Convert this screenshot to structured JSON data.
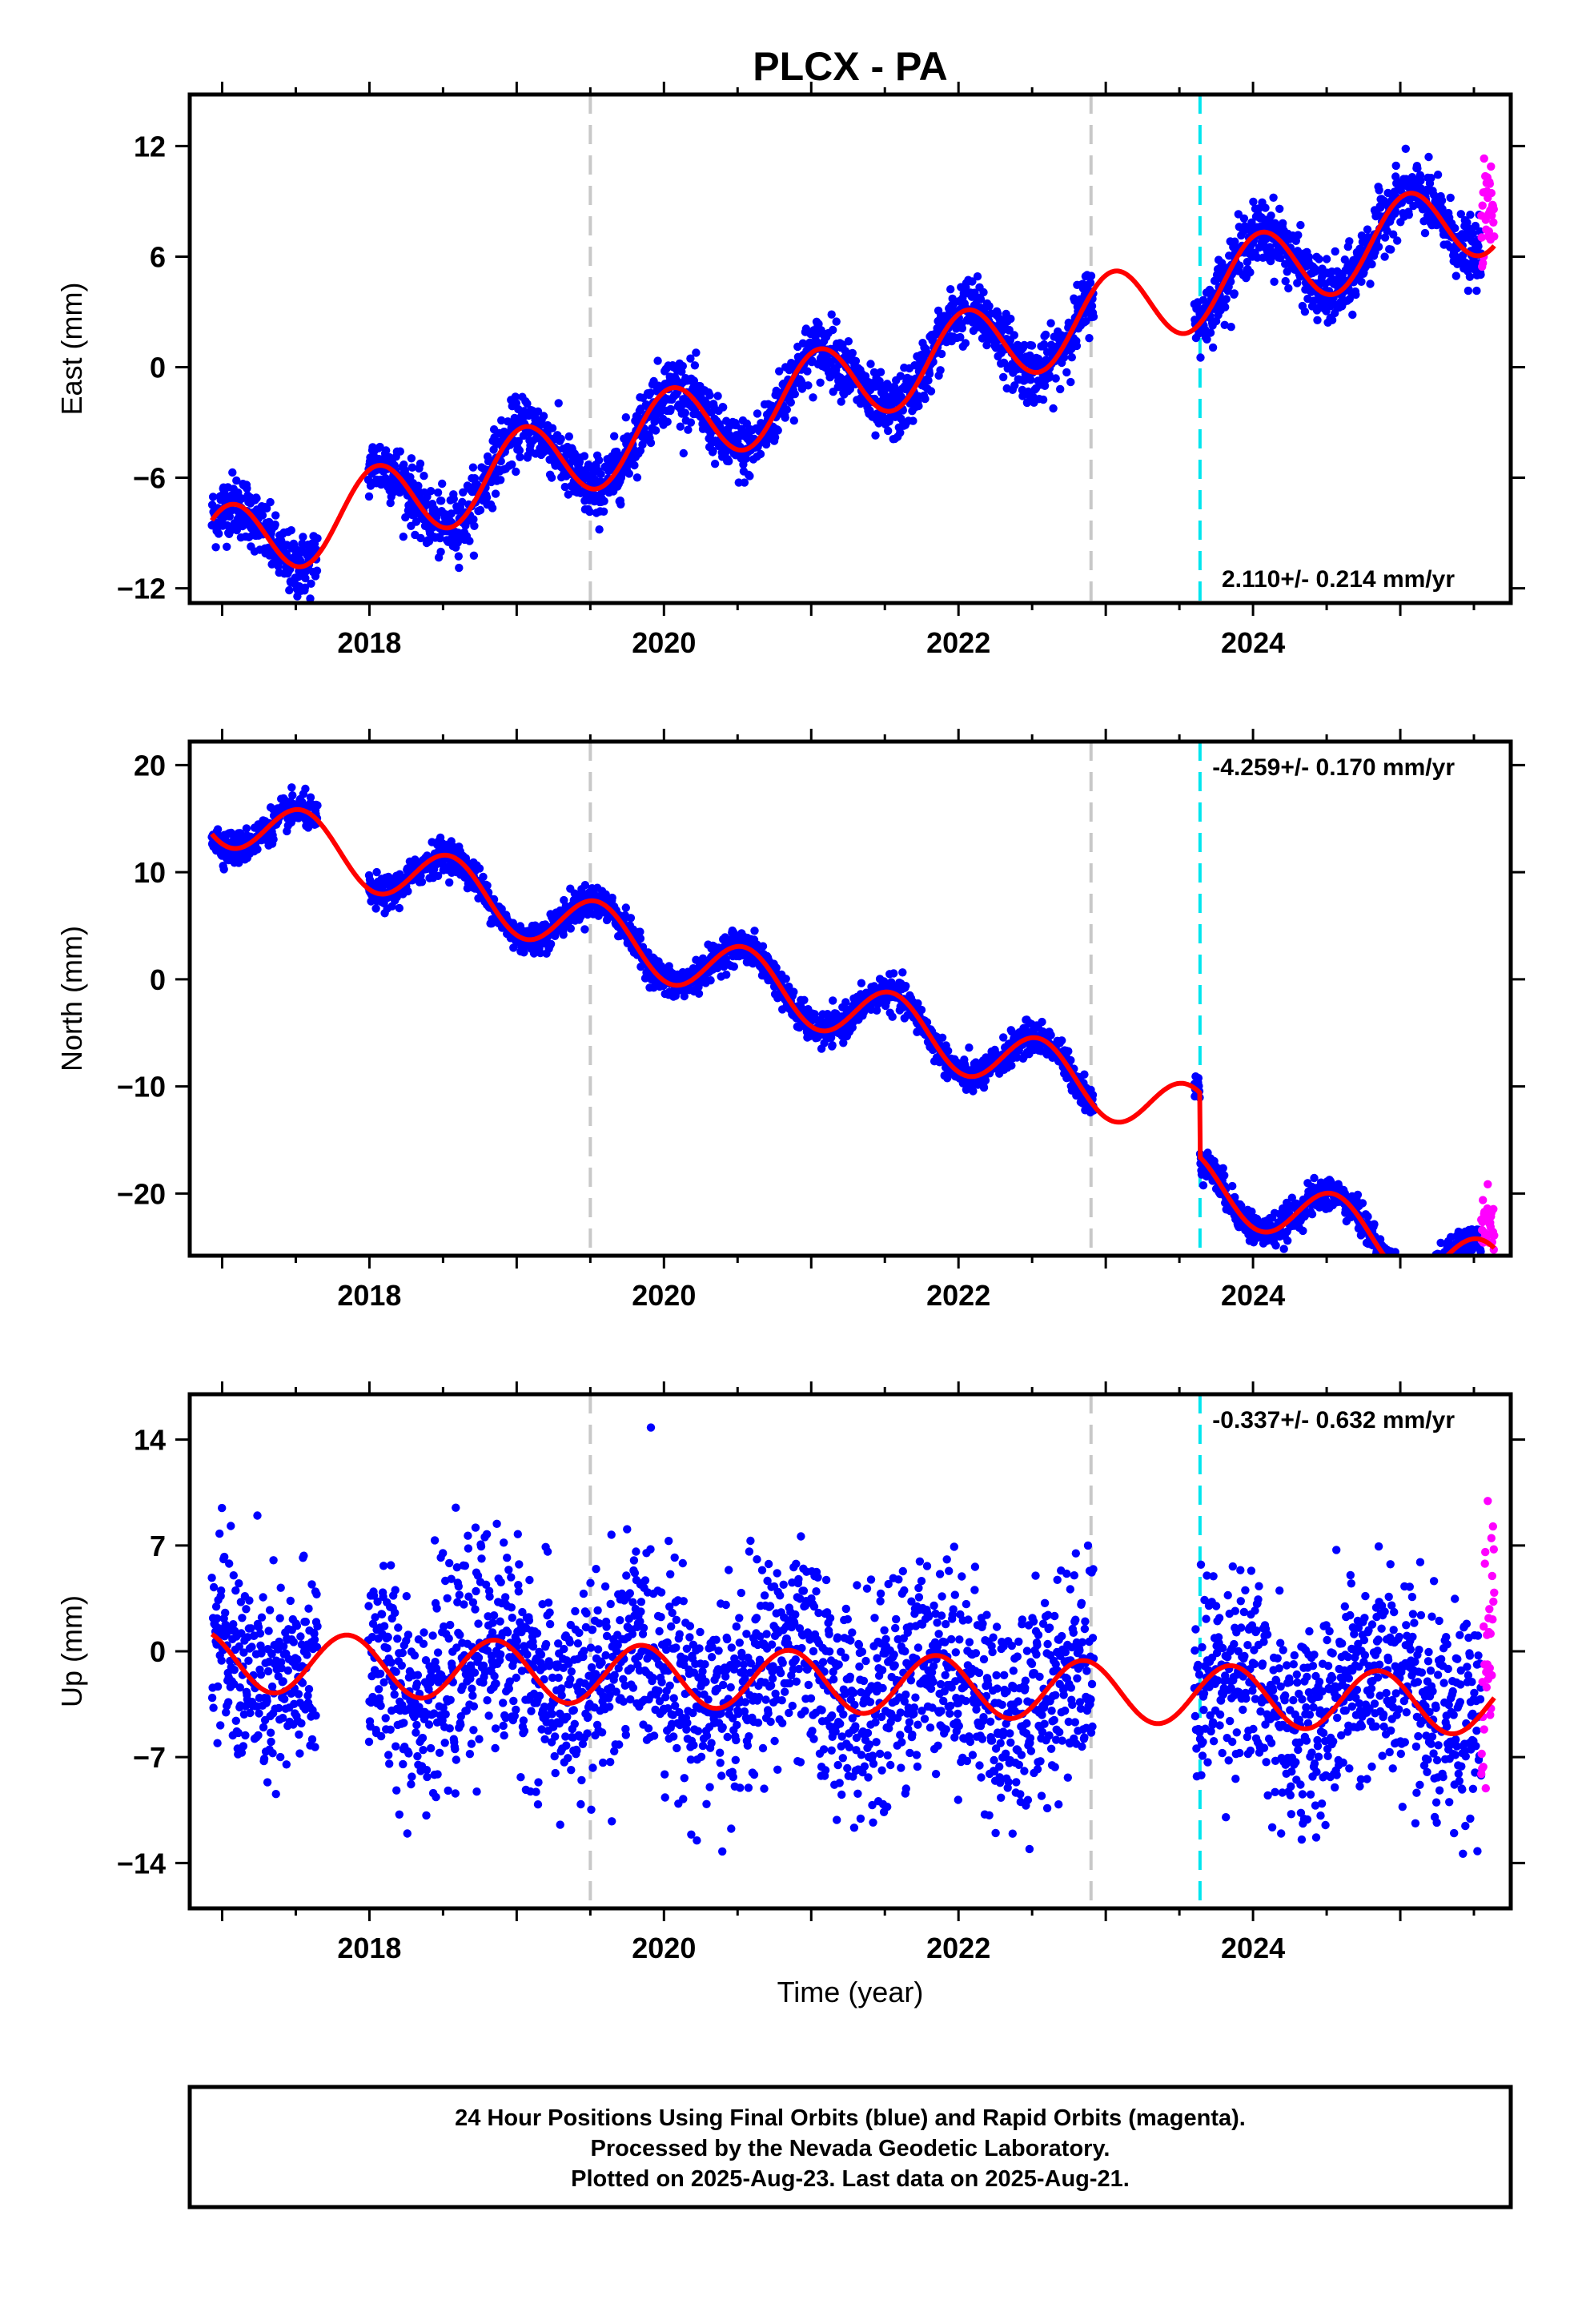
{
  "title": "PLCX - PA",
  "xlabel": "Time (year)",
  "caption": [
    "24 Hour Positions Using Final Orbits (blue) and Rapid Orbits (magenta).",
    "Processed by the Nevada Geodetic Laboratory.",
    "Plotted on 2025-Aug-23. Last data on 2025-Aug-21."
  ],
  "colors": {
    "final": "#0000ff",
    "rapid": "#ff00ff",
    "model": "#ff0000",
    "equipment_change": "#c8c8c8",
    "earthquake": "#00e5ee"
  },
  "chart_data": [
    {
      "type": "scatter",
      "ylabel": "East (mm)",
      "xlim": [
        2016.78,
        2025.75
      ],
      "ylim": [
        -12.8,
        14.8
      ],
      "yticks": [
        -12,
        -6,
        0,
        6,
        12
      ],
      "xticks": [
        2018,
        2020,
        2022,
        2024
      ],
      "rate_text": "2.110+/- 0.214 mm/yr",
      "rate": 2.11,
      "offset_2024": 5.0,
      "amplitude": 2.2,
      "phase_peak": 0.05,
      "noise": 0.85,
      "equipment_changes": [
        2019.5,
        2022.9
      ],
      "earthquakes": [
        2023.64
      ],
      "steps": [],
      "series": [
        {
          "name": "Final Orbits",
          "color": "#0000ff",
          "x_range": [
            2016.93,
            2025.55
          ],
          "gaps": [
            [
              2017.65,
              2017.99
            ],
            [
              2022.92,
              2023.6
            ]
          ]
        },
        {
          "name": "Rapid Orbits",
          "color": "#ff00ff",
          "x_range": [
            2025.55,
            2025.64
          ]
        },
        {
          "name": "Model",
          "color": "#ff0000"
        }
      ]
    },
    {
      "type": "scatter",
      "ylabel": "North (mm)",
      "xlim": [
        2016.78,
        2025.75
      ],
      "ylim": [
        -25.8,
        22.2
      ],
      "yticks": [
        -20,
        -10,
        0,
        10,
        20
      ],
      "xticks": [
        2018,
        2020,
        2022,
        2024
      ],
      "rate_text": "-4.259+/- 0.170 mm/yr",
      "rate": -4.259,
      "offset_2024": -14.5,
      "amplitude": 2.8,
      "phase_peak": 0.55,
      "noise": 0.75,
      "equipment_changes": [
        2019.5,
        2022.9
      ],
      "earthquakes": [
        2023.64
      ],
      "steps": [
        [
          2023.64,
          -6.0
        ]
      ],
      "series": [
        {
          "name": "Final Orbits",
          "color": "#0000ff",
          "x_range": [
            2016.93,
            2025.55
          ],
          "gaps": [
            [
              2017.65,
              2017.99
            ],
            [
              2022.92,
              2023.6
            ]
          ]
        },
        {
          "name": "Rapid Orbits",
          "color": "#ff00ff",
          "x_range": [
            2025.55,
            2025.64
          ]
        },
        {
          "name": "Model",
          "color": "#ff0000"
        }
      ]
    },
    {
      "type": "scatter",
      "ylabel": "Up (mm)",
      "xlim": [
        2016.78,
        2025.75
      ],
      "ylim": [
        -17.0,
        17.0
      ],
      "yticks": [
        -14,
        -7,
        0,
        7,
        14
      ],
      "xticks": [
        2018,
        2020,
        2022,
        2024
      ],
      "rate_text": "-0.337+/- 0.632 mm/yr",
      "rate": -0.337,
      "offset_2024": -3.0,
      "amplitude": 2.0,
      "phase_peak": 0.85,
      "noise": 3.4,
      "equipment_changes": [
        2019.5,
        2022.9
      ],
      "earthquakes": [
        2023.64
      ],
      "steps": [],
      "series": [
        {
          "name": "Final Orbits",
          "color": "#0000ff",
          "x_range": [
            2016.93,
            2025.55
          ],
          "gaps": [
            [
              2017.65,
              2017.99
            ],
            [
              2022.92,
              2023.6
            ]
          ]
        },
        {
          "name": "Rapid Orbits",
          "color": "#ff00ff",
          "x_range": [
            2025.55,
            2025.64
          ]
        },
        {
          "name": "Model",
          "color": "#ff0000"
        }
      ]
    }
  ]
}
